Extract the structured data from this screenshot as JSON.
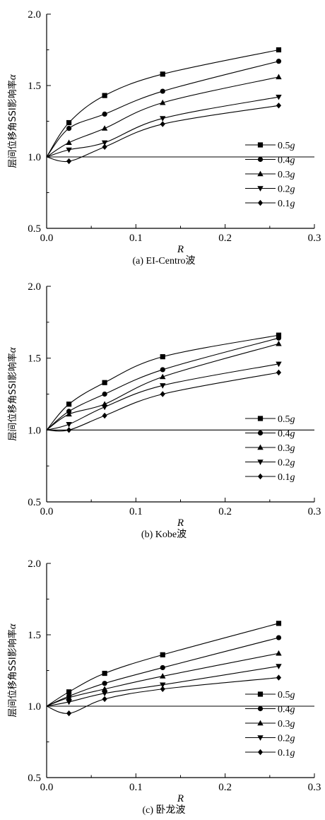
{
  "chart_data": [
    {
      "type": "line",
      "caption": "(a) EI-Centro波",
      "xlabel": "R",
      "ylabel": "层间位移角SSI影响率α",
      "xlim": [
        0.0,
        0.3
      ],
      "ylim": [
        0.5,
        2.0
      ],
      "xticks": [
        "0.0",
        "0.1",
        "0.2",
        "0.3"
      ],
      "yticks": [
        "0.5",
        "1.0",
        "1.5",
        "2.0"
      ],
      "reference_line_y": 1.0,
      "legend_position": "bottom-right",
      "x": [
        0.025,
        0.065,
        0.13,
        0.26
      ],
      "series": [
        {
          "name": "0.5g",
          "marker": "square",
          "values": [
            1.24,
            1.43,
            1.58,
            1.75
          ]
        },
        {
          "name": "0.4g",
          "marker": "circle",
          "values": [
            1.2,
            1.3,
            1.46,
            1.67
          ]
        },
        {
          "name": "0.3g",
          "marker": "triangle-up",
          "values": [
            1.1,
            1.2,
            1.38,
            1.56
          ]
        },
        {
          "name": "0.2g",
          "marker": "triangle-down",
          "values": [
            1.05,
            1.1,
            1.27,
            1.42
          ]
        },
        {
          "name": "0.1g",
          "marker": "diamond",
          "values": [
            0.97,
            1.07,
            1.23,
            1.36
          ]
        }
      ]
    },
    {
      "type": "line",
      "caption": "(b) Kobe波",
      "xlabel": "R",
      "ylabel": "层间位移角SSI影响率α",
      "xlim": [
        0.0,
        0.3
      ],
      "ylim": [
        0.5,
        2.0
      ],
      "xticks": [
        "0.0",
        "0.1",
        "0.2",
        "0.3"
      ],
      "yticks": [
        "0.5",
        "1.0",
        "1.5",
        "2.0"
      ],
      "reference_line_y": 1.0,
      "legend_position": "bottom-right",
      "x": [
        0.025,
        0.065,
        0.13,
        0.26
      ],
      "series": [
        {
          "name": "0.5g",
          "marker": "square",
          "values": [
            1.18,
            1.33,
            1.51,
            1.66
          ]
        },
        {
          "name": "0.4g",
          "marker": "circle",
          "values": [
            1.13,
            1.25,
            1.42,
            1.64
          ]
        },
        {
          "name": "0.3g",
          "marker": "triangle-up",
          "values": [
            1.11,
            1.18,
            1.37,
            1.6
          ]
        },
        {
          "name": "0.2g",
          "marker": "triangle-down",
          "values": [
            1.04,
            1.16,
            1.31,
            1.46
          ]
        },
        {
          "name": "0.1g",
          "marker": "diamond",
          "values": [
            1.0,
            1.1,
            1.25,
            1.4
          ]
        }
      ]
    },
    {
      "type": "line",
      "caption": "(c) 卧龙波",
      "xlabel": "R",
      "ylabel": "层间位移角SSI影响率α",
      "xlim": [
        0.0,
        0.3
      ],
      "ylim": [
        0.5,
        2.0
      ],
      "xticks": [
        "0.0",
        "0.1",
        "0.2",
        "0.3"
      ],
      "yticks": [
        "0.5",
        "1.0",
        "1.5",
        "2.0"
      ],
      "reference_line_y": 1.0,
      "legend_position": "bottom-right",
      "x": [
        0.025,
        0.065,
        0.13,
        0.26
      ],
      "series": [
        {
          "name": "0.5g",
          "marker": "square",
          "values": [
            1.1,
            1.23,
            1.36,
            1.58
          ]
        },
        {
          "name": "0.4g",
          "marker": "circle",
          "values": [
            1.07,
            1.16,
            1.27,
            1.48
          ]
        },
        {
          "name": "0.3g",
          "marker": "triangle-up",
          "values": [
            1.06,
            1.12,
            1.21,
            1.37
          ]
        },
        {
          "name": "0.2g",
          "marker": "triangle-down",
          "values": [
            1.03,
            1.09,
            1.15,
            1.28
          ]
        },
        {
          "name": "0.1g",
          "marker": "diamond",
          "values": [
            0.95,
            1.05,
            1.12,
            1.2
          ]
        }
      ]
    }
  ]
}
